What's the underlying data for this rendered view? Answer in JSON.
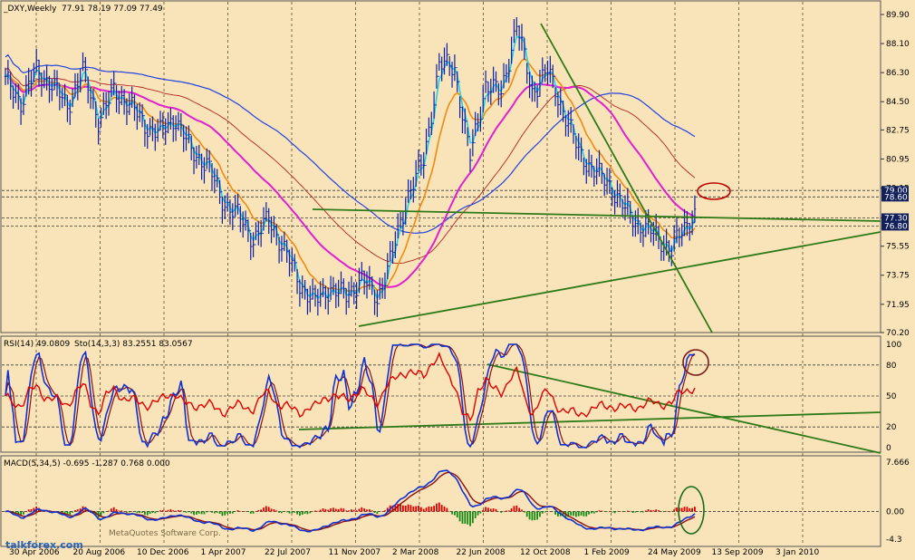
{
  "chart_data": {
    "type": "line",
    "symbol": "_DXY,Weekly",
    "ohlc_header": "77.91 78.19 77.09 77.49",
    "price_ticks": [
      "89.90",
      "88.10",
      "86.30",
      "84.50",
      "82.75",
      "80.95",
      "79.15",
      "77.30",
      "75.55",
      "73.75",
      "71.95",
      "70.20"
    ],
    "price_range": [
      70.2,
      89.9
    ],
    "marked_levels": [
      {
        "label": "79.00",
        "value": 79.0
      },
      {
        "label": "78.60",
        "value": 78.6
      },
      {
        "label": "77.30",
        "value": 77.3
      },
      {
        "label": "76.80",
        "value": 76.8
      }
    ],
    "x_labels": [
      "30 Apr 2006",
      "20 Aug 2006",
      "10 Dec 2006",
      "1 Apr 2007",
      "22 Jul 2007",
      "11 Nov 2007",
      "2 Mar 2008",
      "22 Jun 2008",
      "12 Oct 2008",
      "1 Feb 2009",
      "24 May 2009",
      "13 Sep 2009",
      "3 Jan 2010"
    ],
    "price_anchors": [
      [
        0,
        85.8
      ],
      [
        6,
        84.5
      ],
      [
        12,
        86.4
      ],
      [
        18,
        85.6
      ],
      [
        24,
        84.2
      ],
      [
        30,
        86.4
      ],
      [
        36,
        83.4
      ],
      [
        42,
        85.1
      ],
      [
        48,
        84.4
      ],
      [
        54,
        83.0
      ],
      [
        60,
        82.6
      ],
      [
        66,
        83.5
      ],
      [
        72,
        81.4
      ],
      [
        78,
        80.7
      ],
      [
        84,
        78.4
      ],
      [
        90,
        77.5
      ],
      [
        96,
        76.0
      ],
      [
        102,
        77.2
      ],
      [
        108,
        75.4
      ],
      [
        114,
        73.2
      ],
      [
        120,
        72.1
      ],
      [
        126,
        73.0
      ],
      [
        132,
        72.4
      ],
      [
        138,
        73.6
      ],
      [
        144,
        72.3
      ],
      [
        150,
        75.1
      ],
      [
        156,
        78.8
      ],
      [
        162,
        80.8
      ],
      [
        168,
        86.8
      ],
      [
        174,
        86.6
      ],
      [
        180,
        81.0
      ],
      [
        186,
        85.6
      ],
      [
        192,
        85.0
      ],
      [
        198,
        89.3
      ],
      [
        204,
        85.1
      ],
      [
        210,
        86.4
      ],
      [
        216,
        84.0
      ],
      [
        222,
        81.4
      ],
      [
        228,
        80.2
      ],
      [
        234,
        79.4
      ],
      [
        240,
        77.8
      ],
      [
        246,
        76.8
      ],
      [
        252,
        76.2
      ],
      [
        258,
        75.3
      ],
      [
        264,
        77.0
      ],
      [
        267,
        77.5
      ]
    ],
    "rsi": {
      "label": "RSI(14) 49.0809",
      "stoch_label": "Sto(14,3,3) 83.2551 83.0567",
      "ticks": [
        "100",
        "80",
        "50",
        "20",
        "0"
      ],
      "range": [
        0,
        100
      ]
    },
    "macd": {
      "label": "MACD(5,34,5) -0.695 -1.287 0.768 0.000",
      "ticks": [
        "7.666",
        "0.00",
        "-4.3"
      ],
      "range": [
        -4.3,
        7.666
      ]
    }
  },
  "watermark": {
    "copyright": "MetaQuotes Software Corp.",
    "site": "talkforex.com"
  },
  "colors": {
    "background": "#F9E4B9",
    "price_bars": "#0B1FA8",
    "ma_fast": "#22D3E6",
    "ma_mid": "#F08A10",
    "ma_magenta": "#E020D0",
    "ma_blue": "#2040E0",
    "envelope": "#6B2E12",
    "trendline": "#2E7A17",
    "rsi": "#E00000",
    "stoch": "#1030D0",
    "macd_positive": "#E00000",
    "macd_negative": "#138A13"
  }
}
